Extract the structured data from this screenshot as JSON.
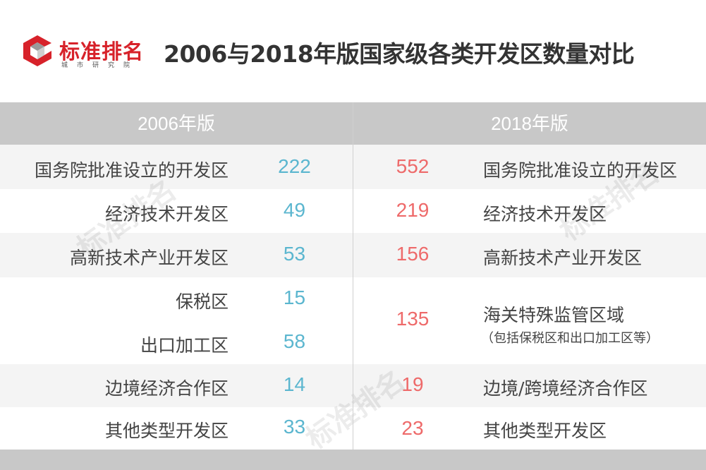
{
  "brand": {
    "name": "标准排名",
    "sub": "城市研究院",
    "accent_color": "#d7222a"
  },
  "title": "2006与2018年版国家级各类开发区数量对比",
  "columns": {
    "left": "2006年版",
    "right": "2018年版"
  },
  "left_rows": [
    {
      "label": "国务院批准设立的开发区",
      "value": "222"
    },
    {
      "label": "经济技术开发区",
      "value": "49"
    },
    {
      "label": "高新技术产业开发区",
      "value": "53"
    },
    {
      "label": "保税区",
      "value": "15"
    },
    {
      "label": "出口加工区",
      "value": "58"
    },
    {
      "label": "边境经济合作区",
      "value": "14"
    },
    {
      "label": "其他类型开发区",
      "value": "33"
    }
  ],
  "right_rows": [
    {
      "label": "国务院批准设立的开发区",
      "value": "552"
    },
    {
      "label": "经济技术开发区",
      "value": "219"
    },
    {
      "label": "高新技术产业开发区",
      "value": "156"
    },
    {
      "label": "海关特殊监管区域",
      "note": "（包括保税区和出口加工区等）",
      "value": "135"
    },
    {
      "label": "边境/跨境经济合作区",
      "value": "19"
    },
    {
      "label": "其他类型开发区",
      "value": "23"
    }
  ],
  "colors": {
    "left_value": "#5bb6cf",
    "right_value": "#ee6a6a",
    "header_band": "#c8c8c8"
  }
}
